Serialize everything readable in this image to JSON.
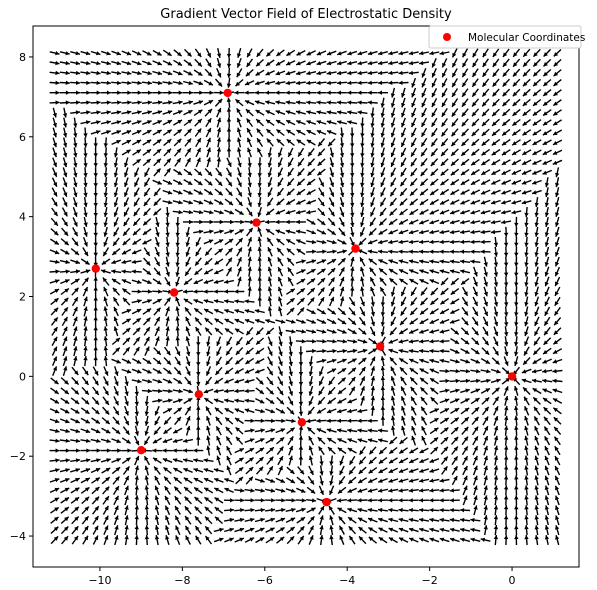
{
  "chart_data": {
    "type": "quiver",
    "title": "Gradient Vector Field of Electrostatic Density",
    "xlabel": "",
    "ylabel": "",
    "xlim": [
      -11.6,
      1.6
    ],
    "ylim": [
      -4.75,
      8.75
    ],
    "xticks": [
      -10,
      -8,
      -6,
      -4,
      -2,
      0
    ],
    "xtick_labels": [
      "−10",
      "−8",
      "−6",
      "−4",
      "−2",
      "0"
    ],
    "yticks": [
      -4,
      -2,
      0,
      2,
      4,
      6,
      8
    ],
    "ytick_labels": [
      "−4",
      "−2",
      "0",
      "2",
      "4",
      "6",
      "8"
    ],
    "grid": false,
    "legend": {
      "position": "top-right",
      "entries": [
        "Molecular Coordinates"
      ]
    },
    "field_grid": {
      "x_range": [
        -11.1,
        1.1
      ],
      "y_range": [
        -4.1,
        8.1
      ],
      "nx": 50,
      "ny": 50,
      "arrow_color": "#000000"
    },
    "series": [
      {
        "name": "Molecular Coordinates",
        "color": "#ff0000",
        "points": [
          {
            "x": -6.9,
            "y": 7.1
          },
          {
            "x": -6.2,
            "y": 3.85
          },
          {
            "x": -3.8,
            "y": 3.2
          },
          {
            "x": -10.1,
            "y": 2.7
          },
          {
            "x": -8.2,
            "y": 2.1
          },
          {
            "x": -3.2,
            "y": 0.75
          },
          {
            "x": 0.0,
            "y": 0.0
          },
          {
            "x": -7.6,
            "y": -0.45
          },
          {
            "x": -5.1,
            "y": -1.15
          },
          {
            "x": -9.0,
            "y": -1.85
          },
          {
            "x": -4.5,
            "y": -3.15
          }
        ]
      }
    ]
  }
}
